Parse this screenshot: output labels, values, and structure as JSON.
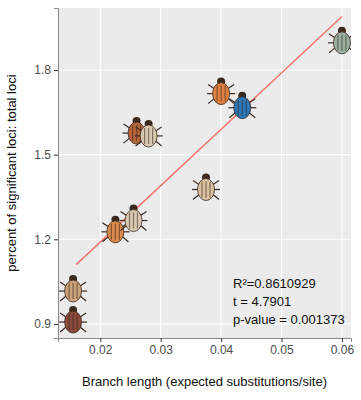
{
  "chart_data": {
    "type": "scatter",
    "x_label": "Branch length (expected substitutions/site)",
    "y_label": "percent of significant loci: total loci",
    "xlim": [
      0.013,
      0.0615
    ],
    "ylim": [
      0.85,
      2.02
    ],
    "xticks": [
      0.02,
      0.03,
      0.04,
      0.05,
      0.06
    ],
    "yticks": [
      0.9,
      1.2,
      1.5,
      1.8
    ],
    "grid": true,
    "series": [
      {
        "type": "scatter",
        "marker": "beetle",
        "x": [
          0.0155,
          0.0155,
          0.0225,
          0.0255,
          0.026,
          0.028,
          0.0375,
          0.04,
          0.0435,
          0.06
        ],
        "values": [
          1.02,
          0.91,
          1.23,
          1.27,
          1.58,
          1.57,
          1.38,
          1.72,
          1.67,
          1.9
        ],
        "colors": [
          "#c9a27a",
          "#8a4a3a",
          "#d98a4a",
          "#d8c8b0",
          "#b8643a",
          "#d8c8b0",
          "#d8c0a0",
          "#e08040",
          "#2a78b8",
          "#9ab0a0"
        ]
      },
      {
        "type": "line",
        "color": "#f8766d",
        "x": [
          0.016,
          0.06
        ],
        "values": [
          1.11,
          1.99
        ]
      }
    ],
    "annotations": [
      "R²=0.8610929",
      "t = 4.7901",
      "p-value = 0.001373"
    ]
  }
}
